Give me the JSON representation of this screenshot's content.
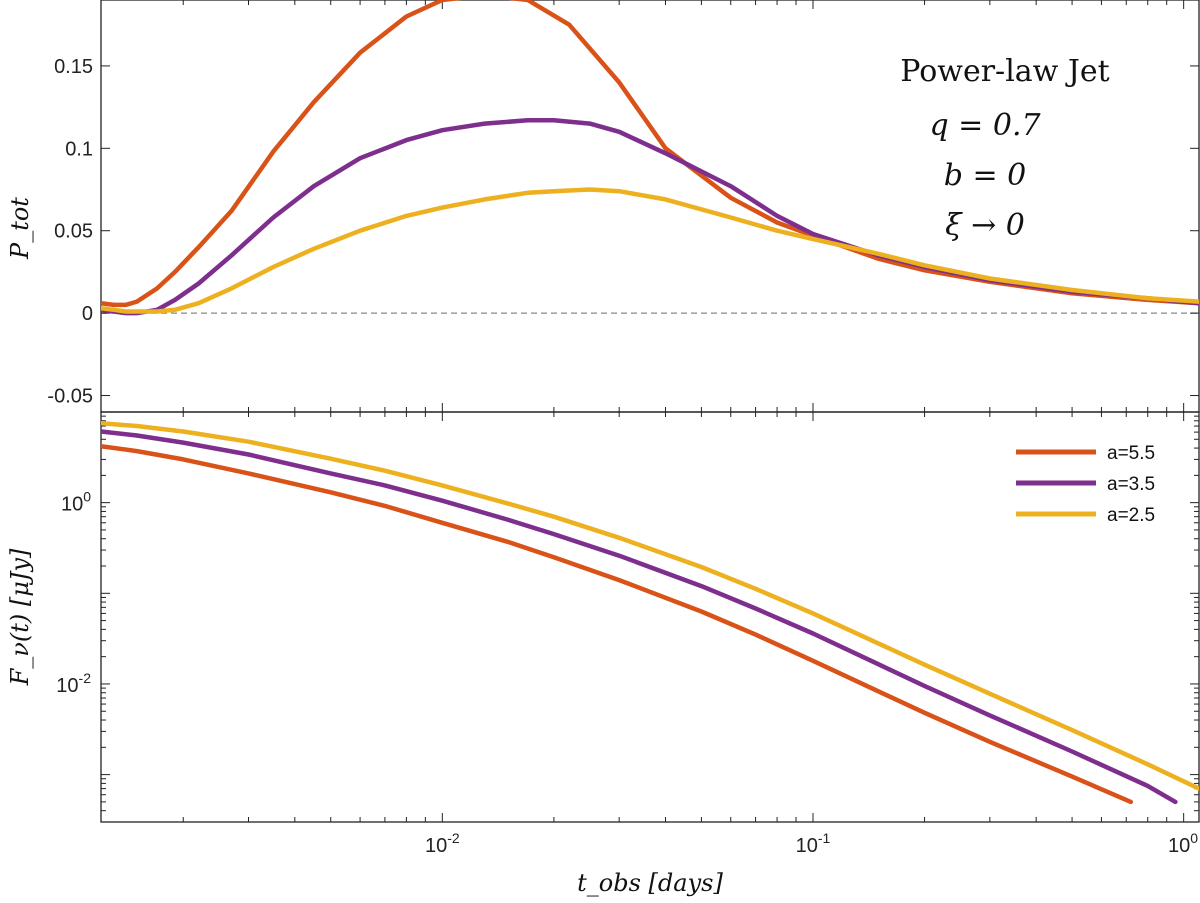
{
  "chart_data": [
    {
      "panel": "top",
      "type": "line",
      "xscale": "log",
      "xlim": [
        0.0012,
        1.1
      ],
      "ylim": [
        -0.06,
        0.19
      ],
      "yticks": [
        -0.05,
        0,
        0.05,
        0.1,
        0.15
      ],
      "ytick_labels": [
        "-0.05",
        "0",
        "0.05",
        "0.1",
        "0.15"
      ],
      "ylabel": "P_tot",
      "zero_line": true,
      "annotations": [
        "Power-law Jet",
        "q = 0.7",
        "b = 0",
        "ξ → 0"
      ],
      "series": [
        {
          "name": "a=5.5",
          "color": "#d95319",
          "x": [
            0.0012,
            0.0013,
            0.0014,
            0.0015,
            0.0017,
            0.0019,
            0.0022,
            0.0027,
            0.0035,
            0.0045,
            0.006,
            0.008,
            0.01,
            0.013,
            0.017,
            0.022,
            0.03,
            0.04,
            0.06,
            0.08,
            0.1,
            0.15,
            0.2,
            0.3,
            0.5,
            0.8,
            1.1
          ],
          "y": [
            0.006,
            0.005,
            0.005,
            0.007,
            0.015,
            0.025,
            0.04,
            0.062,
            0.098,
            0.128,
            0.158,
            0.18,
            0.19,
            0.193,
            0.19,
            0.175,
            0.14,
            0.1,
            0.07,
            0.055,
            0.047,
            0.033,
            0.026,
            0.019,
            0.012,
            0.008,
            0.006
          ]
        },
        {
          "name": "a=3.5",
          "color": "#7e2f8e",
          "x": [
            0.0012,
            0.0013,
            0.0014,
            0.0015,
            0.0017,
            0.0019,
            0.0022,
            0.0027,
            0.0035,
            0.0045,
            0.006,
            0.008,
            0.01,
            0.013,
            0.017,
            0.02,
            0.025,
            0.03,
            0.04,
            0.06,
            0.08,
            0.1,
            0.15,
            0.2,
            0.3,
            0.5,
            0.8,
            1.1
          ],
          "y": [
            0.002,
            0.001,
            0.0,
            0.0,
            0.002,
            0.008,
            0.018,
            0.035,
            0.058,
            0.077,
            0.094,
            0.105,
            0.111,
            0.115,
            0.117,
            0.117,
            0.115,
            0.11,
            0.097,
            0.077,
            0.059,
            0.048,
            0.035,
            0.028,
            0.02,
            0.013,
            0.009,
            0.006
          ]
        },
        {
          "name": "a=2.5",
          "color": "#edb120",
          "x": [
            0.0012,
            0.0013,
            0.0014,
            0.0015,
            0.0017,
            0.0019,
            0.0022,
            0.0027,
            0.0035,
            0.0045,
            0.006,
            0.008,
            0.01,
            0.013,
            0.017,
            0.02,
            0.025,
            0.03,
            0.04,
            0.06,
            0.08,
            0.1,
            0.15,
            0.2,
            0.3,
            0.5,
            0.8,
            1.1
          ],
          "y": [
            0.003,
            0.002,
            0.001,
            0.001,
            0.001,
            0.002,
            0.006,
            0.015,
            0.028,
            0.039,
            0.05,
            0.059,
            0.064,
            0.069,
            0.073,
            0.074,
            0.075,
            0.074,
            0.069,
            0.058,
            0.05,
            0.045,
            0.036,
            0.029,
            0.021,
            0.014,
            0.009,
            0.007
          ]
        }
      ]
    },
    {
      "panel": "bottom",
      "type": "line",
      "xscale": "log",
      "yscale": "log",
      "xlim": [
        0.0012,
        1.1
      ],
      "ylim": [
        0.0003,
        10
      ],
      "xticks": [
        0.01,
        0.1,
        1
      ],
      "xtick_labels": [
        {
          "base": "10",
          "exp": "-2"
        },
        {
          "base": "10",
          "exp": "-1"
        },
        {
          "base": "10",
          "exp": "0"
        }
      ],
      "yticks": [
        0.01,
        1
      ],
      "ytick_labels": [
        {
          "base": "10",
          "exp": "-2"
        },
        {
          "base": "10",
          "exp": "0"
        }
      ],
      "xlabel": "t_obs [days]",
      "ylabel": "F_ν(t) [μJy]",
      "legend_position": "top-right",
      "series": [
        {
          "name": "a=5.5",
          "color": "#d95319",
          "x": [
            0.0012,
            0.0015,
            0.002,
            0.003,
            0.005,
            0.007,
            0.01,
            0.015,
            0.02,
            0.03,
            0.05,
            0.07,
            0.1,
            0.15,
            0.2,
            0.3,
            0.5,
            0.72
          ],
          "y": [
            4.2,
            3.7,
            3.0,
            2.1,
            1.3,
            0.92,
            0.6,
            0.37,
            0.25,
            0.14,
            0.063,
            0.035,
            0.018,
            0.0083,
            0.0048,
            0.0023,
            0.00095,
            0.0005
          ]
        },
        {
          "name": "a=3.5",
          "color": "#7e2f8e",
          "x": [
            0.0012,
            0.0015,
            0.002,
            0.003,
            0.005,
            0.007,
            0.01,
            0.015,
            0.02,
            0.03,
            0.05,
            0.07,
            0.1,
            0.15,
            0.2,
            0.3,
            0.5,
            0.8,
            0.95
          ],
          "y": [
            6.1,
            5.5,
            4.6,
            3.4,
            2.1,
            1.55,
            1.05,
            0.65,
            0.45,
            0.26,
            0.12,
            0.068,
            0.036,
            0.0165,
            0.0095,
            0.0045,
            0.0018,
            0.00075,
            0.0005
          ]
        },
        {
          "name": "a=2.5",
          "color": "#edb120",
          "x": [
            0.0012,
            0.0015,
            0.002,
            0.003,
            0.005,
            0.007,
            0.01,
            0.015,
            0.02,
            0.03,
            0.05,
            0.07,
            0.1,
            0.15,
            0.2,
            0.3,
            0.5,
            0.8,
            1.1
          ],
          "y": [
            7.5,
            7.0,
            6.1,
            4.7,
            3.05,
            2.25,
            1.55,
            0.98,
            0.7,
            0.41,
            0.195,
            0.112,
            0.06,
            0.028,
            0.0163,
            0.0078,
            0.0031,
            0.0013,
            0.0007
          ]
        }
      ]
    }
  ]
}
